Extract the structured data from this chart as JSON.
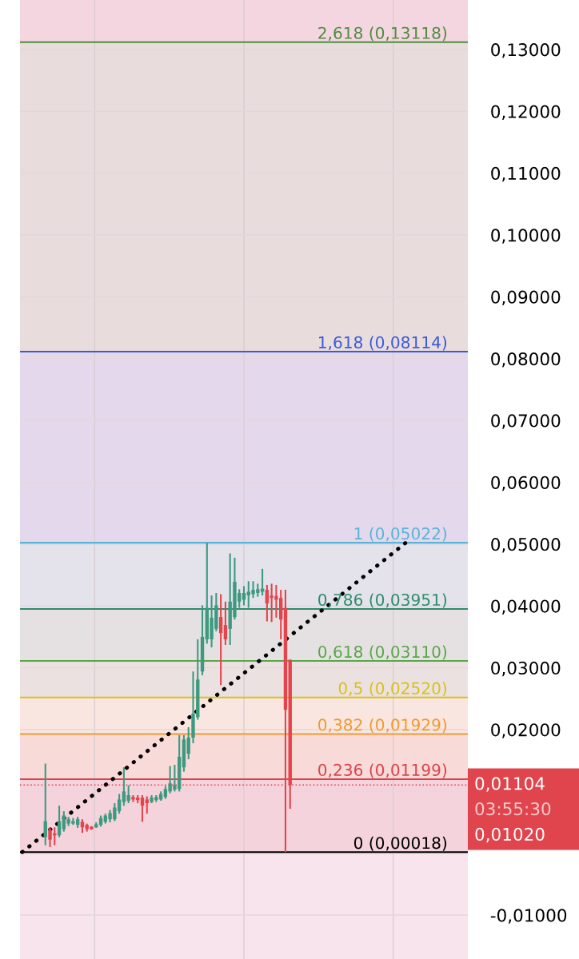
{
  "chart_data": {
    "type": "candlestick",
    "categories": [
      null,
      null,
      null,
      null,
      null,
      null,
      null,
      null,
      null,
      null,
      null,
      null,
      null,
      null,
      null,
      null,
      null,
      null,
      null,
      null,
      null,
      null,
      null,
      null,
      null,
      null,
      null,
      null,
      null,
      null,
      null,
      null,
      null,
      null,
      null,
      null,
      null,
      null,
      null,
      null,
      null,
      null,
      null,
      null,
      null,
      null,
      null,
      null,
      null,
      null,
      null,
      null,
      null,
      null,
      null,
      null,
      null,
      null,
      null,
      null,
      null,
      null,
      null,
      null,
      null,
      null,
      null,
      null,
      null,
      null,
      null,
      null,
      null,
      null,
      null,
      null,
      null,
      null,
      null,
      null,
      null,
      null,
      null,
      null,
      null,
      null,
      null,
      null,
      null,
      null,
      null,
      null,
      null,
      null,
      null,
      null,
      null
    ],
    "ohlc": [
      null,
      null,
      null,
      null,
      null,
      [
        0.0026,
        0.0145,
        0.0013,
        0.0052
      ],
      [
        0.0038,
        0.0042,
        0.001,
        0.0022
      ],
      [
        0.0032,
        0.0042,
        0.0013,
        0.0029
      ],
      [
        0.0029,
        0.0077,
        0.0026,
        0.0052
      ],
      [
        0.0039,
        0.0068,
        0.0035,
        0.0061
      ],
      [
        0.0048,
        0.0059,
        0.0044,
        0.0055
      ],
      [
        0.0048,
        0.0057,
        0.0046,
        0.0052
      ],
      [
        0.0046,
        0.0059,
        0.0041,
        0.0055
      ],
      [
        0.0051,
        0.0055,
        0.0033,
        0.0042
      ],
      [
        0.0046,
        0.0048,
        0.0035,
        0.0039
      ],
      [
        0.0043,
        0.0044,
        0.0038,
        0.0039
      ],
      [
        0.0042,
        0.005,
        0.0041,
        0.0047
      ],
      [
        0.0046,
        0.0061,
        0.0043,
        0.0057
      ],
      [
        0.0051,
        0.0064,
        0.0048,
        0.0061
      ],
      [
        0.0055,
        0.007,
        0.005,
        0.0065
      ],
      [
        0.0055,
        0.0081,
        0.0052,
        0.0074
      ],
      [
        0.0068,
        0.0096,
        0.0064,
        0.0087
      ],
      [
        0.0083,
        0.0139,
        0.0077,
        0.01
      ],
      [
        0.0085,
        0.011,
        0.0081,
        0.0094
      ],
      [
        0.0091,
        0.0094,
        0.0083,
        0.0087
      ],
      [
        0.009,
        0.0094,
        0.0081,
        0.0086
      ],
      [
        0.009,
        0.0094,
        0.0051,
        0.0077
      ],
      [
        0.0087,
        0.0092,
        0.0064,
        0.0081
      ],
      [
        0.0083,
        0.0094,
        0.0081,
        0.009
      ],
      [
        0.0086,
        0.0094,
        0.0083,
        0.0091
      ],
      [
        0.0087,
        0.01,
        0.0085,
        0.0096
      ],
      [
        0.0091,
        0.0109,
        0.0088,
        0.0104
      ],
      [
        0.01,
        0.0141,
        0.0097,
        0.0113
      ],
      [
        0.0103,
        0.0143,
        0.01,
        0.011
      ],
      [
        0.0104,
        0.0191,
        0.01,
        0.0156
      ],
      [
        0.0139,
        0.0191,
        0.0132,
        0.0184
      ],
      [
        0.0161,
        0.0204,
        0.0152,
        0.0187
      ],
      [
        0.0187,
        0.0294,
        0.0178,
        0.0226
      ],
      [
        0.022,
        0.0346,
        0.0216,
        0.0281
      ],
      [
        0.0294,
        0.0401,
        0.0288,
        0.035
      ],
      [
        0.0346,
        0.0502,
        0.0339,
        0.0397
      ],
      [
        0.0346,
        0.0417,
        0.0333,
        0.0381
      ],
      [
        0.0363,
        0.0421,
        0.0359,
        0.0401
      ],
      [
        0.0382,
        0.0419,
        0.0272,
        0.0356
      ],
      [
        0.0369,
        0.0407,
        0.0337,
        0.0346
      ],
      [
        0.0363,
        0.0485,
        0.0337,
        0.0407
      ],
      [
        0.0382,
        0.0478,
        0.0378,
        0.0439
      ],
      [
        0.0407,
        0.0427,
        0.0397,
        0.0421
      ],
      [
        0.041,
        0.0432,
        0.0401,
        0.0421
      ],
      [
        0.0417,
        0.044,
        0.0397,
        0.0423
      ],
      [
        0.0419,
        0.044,
        0.0413,
        0.0426
      ],
      [
        0.0421,
        0.0436,
        0.0415,
        0.0427
      ],
      [
        0.0423,
        0.046,
        0.0417,
        0.0428
      ],
      [
        0.0426,
        0.0434,
        0.0375,
        0.0404
      ],
      [
        0.0417,
        0.0436,
        0.0374,
        0.0413
      ],
      [
        0.0416,
        0.0434,
        0.0381,
        0.041
      ],
      [
        0.0413,
        0.0426,
        0.0346,
        0.0378
      ],
      [
        0.0397,
        0.0426,
        0.0002,
        0.0232
      ],
      [
        0.0313,
        0.0313,
        0.0072,
        0.01104
      ],
      null,
      null,
      null,
      null,
      null,
      null,
      null,
      null,
      null,
      null,
      null,
      null,
      null,
      null,
      null,
      null,
      null,
      null,
      null,
      null,
      null,
      null,
      null,
      null,
      null,
      null,
      null,
      null,
      null,
      null,
      null,
      null,
      null,
      null,
      null,
      null,
      null,
      null
    ],
    "colors": [
      null,
      null,
      null,
      null,
      null,
      "#3d9a80",
      "#e5444c",
      "#e5444c",
      "#3d9a80",
      "#3d9a80",
      "#3d9a80",
      "#3d9a80",
      "#3d9a80",
      "#e5444c",
      "#e5444c",
      "#e5444c",
      "#3d9a80",
      "#3d9a80",
      "#3d9a80",
      "#3d9a80",
      "#3d9a80",
      "#3d9a80",
      "#3d9a80",
      "#3d9a80",
      "#e5444c",
      "#e5444c",
      "#e5444c",
      "#e5444c",
      "#3d9a80",
      "#3d9a80",
      "#3d9a80",
      "#3d9a80",
      "#3d9a80",
      "#3d9a80",
      "#3d9a80",
      "#3d9a80",
      "#3d9a80",
      "#3d9a80",
      "#3d9a80",
      "#3d9a80",
      "#3d9a80",
      "#3d9a80",
      "#3d9a80",
      "#e5444c",
      "#e5444c",
      "#3d9a80",
      "#3d9a80",
      "#3d9a80",
      "#3d9a80",
      "#3d9a80",
      "#3d9a80",
      "#3d9a80",
      "#3d9a80",
      "#e5444c",
      "#e5444c",
      "#e5444c",
      "#e5444c",
      "#e5444c",
      "#e5444c",
      null,
      null,
      null,
      null,
      null,
      null,
      null,
      null,
      null,
      null,
      null,
      null,
      null,
      null,
      null,
      null,
      null,
      null,
      null,
      null,
      null,
      null,
      null,
      null,
      null,
      null,
      null,
      null,
      null,
      null,
      null,
      null,
      null,
      null,
      null,
      null,
      null,
      null
    ],
    "series": [
      {
        "type": "line",
        "values": [
          0.0002,
          null,
          null,
          null,
          null,
          null,
          null,
          null,
          null,
          null,
          null,
          null,
          null,
          null,
          null,
          null,
          null,
          null,
          null,
          null,
          null,
          null,
          null,
          null,
          null,
          null,
          null,
          null,
          null,
          null,
          null,
          null,
          null,
          null,
          null,
          null,
          null,
          null,
          null,
          null,
          null,
          null,
          null,
          null,
          null,
          null,
          null,
          null,
          null,
          null,
          null,
          null,
          null,
          null,
          null,
          null,
          null,
          null,
          null,
          null,
          null,
          null,
          null,
          null,
          null,
          null,
          null,
          null,
          null,
          null,
          null,
          null,
          null,
          null,
          null,
          null,
          null,
          null,
          null,
          null,
          null,
          null,
          null,
          0.0502,
          null,
          null,
          null,
          null,
          null,
          null,
          null,
          null,
          null,
          null,
          null,
          null,
          null
        ],
        "color": "#000000",
        "line_style": "dotted"
      }
    ],
    "ylim": [
      -0.0171,
      0.138
    ],
    "yticks": [
      {
        "value": -0.01,
        "label": "-0,01000"
      },
      {
        "value": 0.0,
        "label": null
      },
      {
        "value": 0.01,
        "label": null
      },
      {
        "value": 0.02,
        "label": "0,02000"
      },
      {
        "value": 0.03,
        "label": "0,03000"
      },
      {
        "value": 0.04,
        "label": "0,04000"
      },
      {
        "value": 0.05,
        "label": "0,05000"
      },
      {
        "value": 0.06,
        "label": "0,06000"
      },
      {
        "value": 0.07,
        "label": "0,07000"
      },
      {
        "value": 0.08,
        "label": "0,08000"
      },
      {
        "value": 0.09,
        "label": "0,09000"
      },
      {
        "value": 0.1,
        "label": "0,10000"
      },
      {
        "value": 0.11,
        "label": "0,11000"
      },
      {
        "value": 0.12,
        "label": "0,12000"
      },
      {
        "value": 0.13,
        "label": "0,13000"
      }
    ],
    "tick_labels": "y",
    "grid": "y",
    "legend": false,
    "ref_lines": [
      {
        "axis": "y",
        "value": 0.13118,
        "label": "2,618 (0,13118)",
        "color": "#4e8c3c"
      },
      {
        "axis": "y",
        "value": 0.08114,
        "label": "1,618 (0,08114)",
        "color": "#3a5bd9"
      },
      {
        "axis": "y",
        "value": 0.05022,
        "label": "1 (0,05022)",
        "color": "#5ab4d6"
      },
      {
        "axis": "y",
        "value": 0.03951,
        "label": "0,786 (0,03951)",
        "color": "#2f8c6c"
      },
      {
        "axis": "y",
        "value": 0.0311,
        "label": "0,618 (0,03110)",
        "color": "#5aa648"
      },
      {
        "axis": "y",
        "value": 0.0252,
        "label": "0,5 (0,02520)",
        "color": "#d9c21a"
      },
      {
        "axis": "y",
        "value": 0.01929,
        "label": "0,382 (0,01929)",
        "color": "#ee9a30"
      },
      {
        "axis": "y",
        "value": 0.01199,
        "label": "0,236 (0,01199)",
        "color": "#d9444c"
      },
      {
        "axis": "y",
        "value": 0.00018,
        "label": "0 (0,00018)",
        "color": "#000000"
      },
      {
        "axis": "y",
        "value": 0.01104,
        "label": null,
        "color": "#e5444c",
        "line_style": "dotted"
      }
    ],
    "bands": [
      {
        "axis": "y",
        "from": -0.0171,
        "to": 0.00018,
        "color": "#f8e4ec"
      },
      {
        "axis": "y",
        "from": 0.00018,
        "to": 0.01199,
        "color": "#f5d3dc"
      },
      {
        "axis": "y",
        "from": 0.01199,
        "to": 0.01929,
        "color": "#f8dad8"
      },
      {
        "axis": "y",
        "from": 0.01929,
        "to": 0.0252,
        "color": "#fae6e0"
      },
      {
        "axis": "y",
        "from": 0.0252,
        "to": 0.0311,
        "color": "#ebe1e1"
      },
      {
        "axis": "y",
        "from": 0.0311,
        "to": 0.03951,
        "color": "#e5e1e3"
      },
      {
        "axis": "y",
        "from": 0.03951,
        "to": 0.05022,
        "color": "#e4e2ea"
      },
      {
        "axis": "y",
        "from": 0.05022,
        "to": 0.08114,
        "color": "#e4d8ec"
      },
      {
        "axis": "y",
        "from": 0.08114,
        "to": 0.13118,
        "color": "#e8dcdc"
      },
      {
        "axis": "y",
        "from": 0.13118,
        "to": 0.138,
        "color": "#f4d6e0"
      }
    ],
    "annotations": [
      "0,01104",
      "03:55:30",
      "0,01020"
    ]
  }
}
